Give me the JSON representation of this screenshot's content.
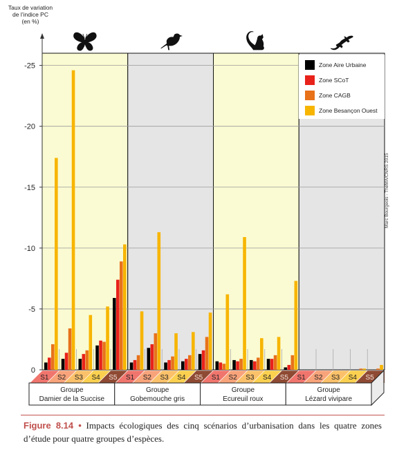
{
  "ylabel_lines": [
    "Taux de variation",
    "de l’indice PC",
    "(en %)"
  ],
  "credit": "Marc Bourgeois - ThéMA/CNRS 2015",
  "caption": {
    "figure_label": "Figure 8.14 •",
    "text": " Impacts écologiques des cinq scénarios d’urbanisation dans les quatre zones d’étude pour quatre groupes d’espèces."
  },
  "chart_data": {
    "type": "bar",
    "y_axis": {
      "min": 0,
      "max": -26,
      "ticks": [
        0,
        -5,
        -10,
        -15,
        -20,
        -25
      ],
      "tick_labels": [
        "0",
        "-5",
        "-10",
        "-15",
        "-20",
        "-25"
      ]
    },
    "scenarios": [
      "S1",
      "S2",
      "S3",
      "S4",
      "S5"
    ],
    "legend": {
      "position": "top-right"
    },
    "series": [
      {
        "name": "Zone Aire Urbaine",
        "color": "#000000"
      },
      {
        "name": "Zone SCoT",
        "color": "#e8221a"
      },
      {
        "name": "Zone CAGB",
        "color": "#e8721a"
      },
      {
        "name": "Zone Besançon Ouest",
        "color": "#f7b500"
      }
    ],
    "groups": [
      {
        "label_1": "Groupe",
        "label_2": "Damier de la Succise",
        "icon": "butterfly-icon",
        "panel_color": "#fafbd2",
        "values": [
          [
            -0.6,
            -1.0,
            -2.1,
            -17.4
          ],
          [
            -0.9,
            -1.4,
            -3.4,
            -24.6
          ],
          [
            -0.9,
            -1.3,
            -1.6,
            -4.5
          ],
          [
            -2.0,
            -2.4,
            -2.3,
            -5.2
          ],
          [
            -5.9,
            -7.4,
            -8.9,
            -10.3
          ]
        ]
      },
      {
        "label_1": "Groupe",
        "label_2": "Gobemouche gris",
        "icon": "bird-icon",
        "panel_color": "#e5e5e5",
        "values": [
          [
            -0.6,
            -0.8,
            -1.2,
            -4.8
          ],
          [
            -1.8,
            -2.1,
            -3.0,
            -11.3
          ],
          [
            -0.6,
            -0.8,
            -1.1,
            -3.0
          ],
          [
            -0.7,
            -0.9,
            -1.2,
            -3.1
          ],
          [
            -1.3,
            -1.6,
            -2.7,
            -4.7
          ]
        ]
      },
      {
        "label_1": "Groupe",
        "label_2": "Ecureuil roux",
        "icon": "squirrel-icon",
        "panel_color": "#fafbd2",
        "values": [
          [
            -0.7,
            -0.6,
            -0.5,
            -6.2
          ],
          [
            -0.8,
            -0.7,
            -0.9,
            -10.9
          ],
          [
            -0.8,
            -0.7,
            -1.0,
            -2.6
          ],
          [
            -0.9,
            -0.9,
            -1.2,
            -2.7
          ],
          [
            -0.2,
            -0.4,
            -1.2,
            -7.3
          ]
        ]
      },
      {
        "label_1": "Groupe",
        "label_2": "Lézard vivipare",
        "icon": "lizard-icon",
        "panel_color": "#e5e5e5",
        "values": [
          [
            0,
            0,
            0,
            0
          ],
          [
            0,
            0,
            0,
            0
          ],
          [
            0,
            0,
            0,
            0
          ],
          [
            0,
            0,
            0.1,
            0.1
          ],
          [
            0,
            0,
            0.1,
            0.4
          ]
        ]
      }
    ],
    "scenario_colors": [
      "#f0756d",
      "#f8a37a",
      "#fbc16a",
      "#fbd04f",
      "#8f4a33"
    ]
  }
}
